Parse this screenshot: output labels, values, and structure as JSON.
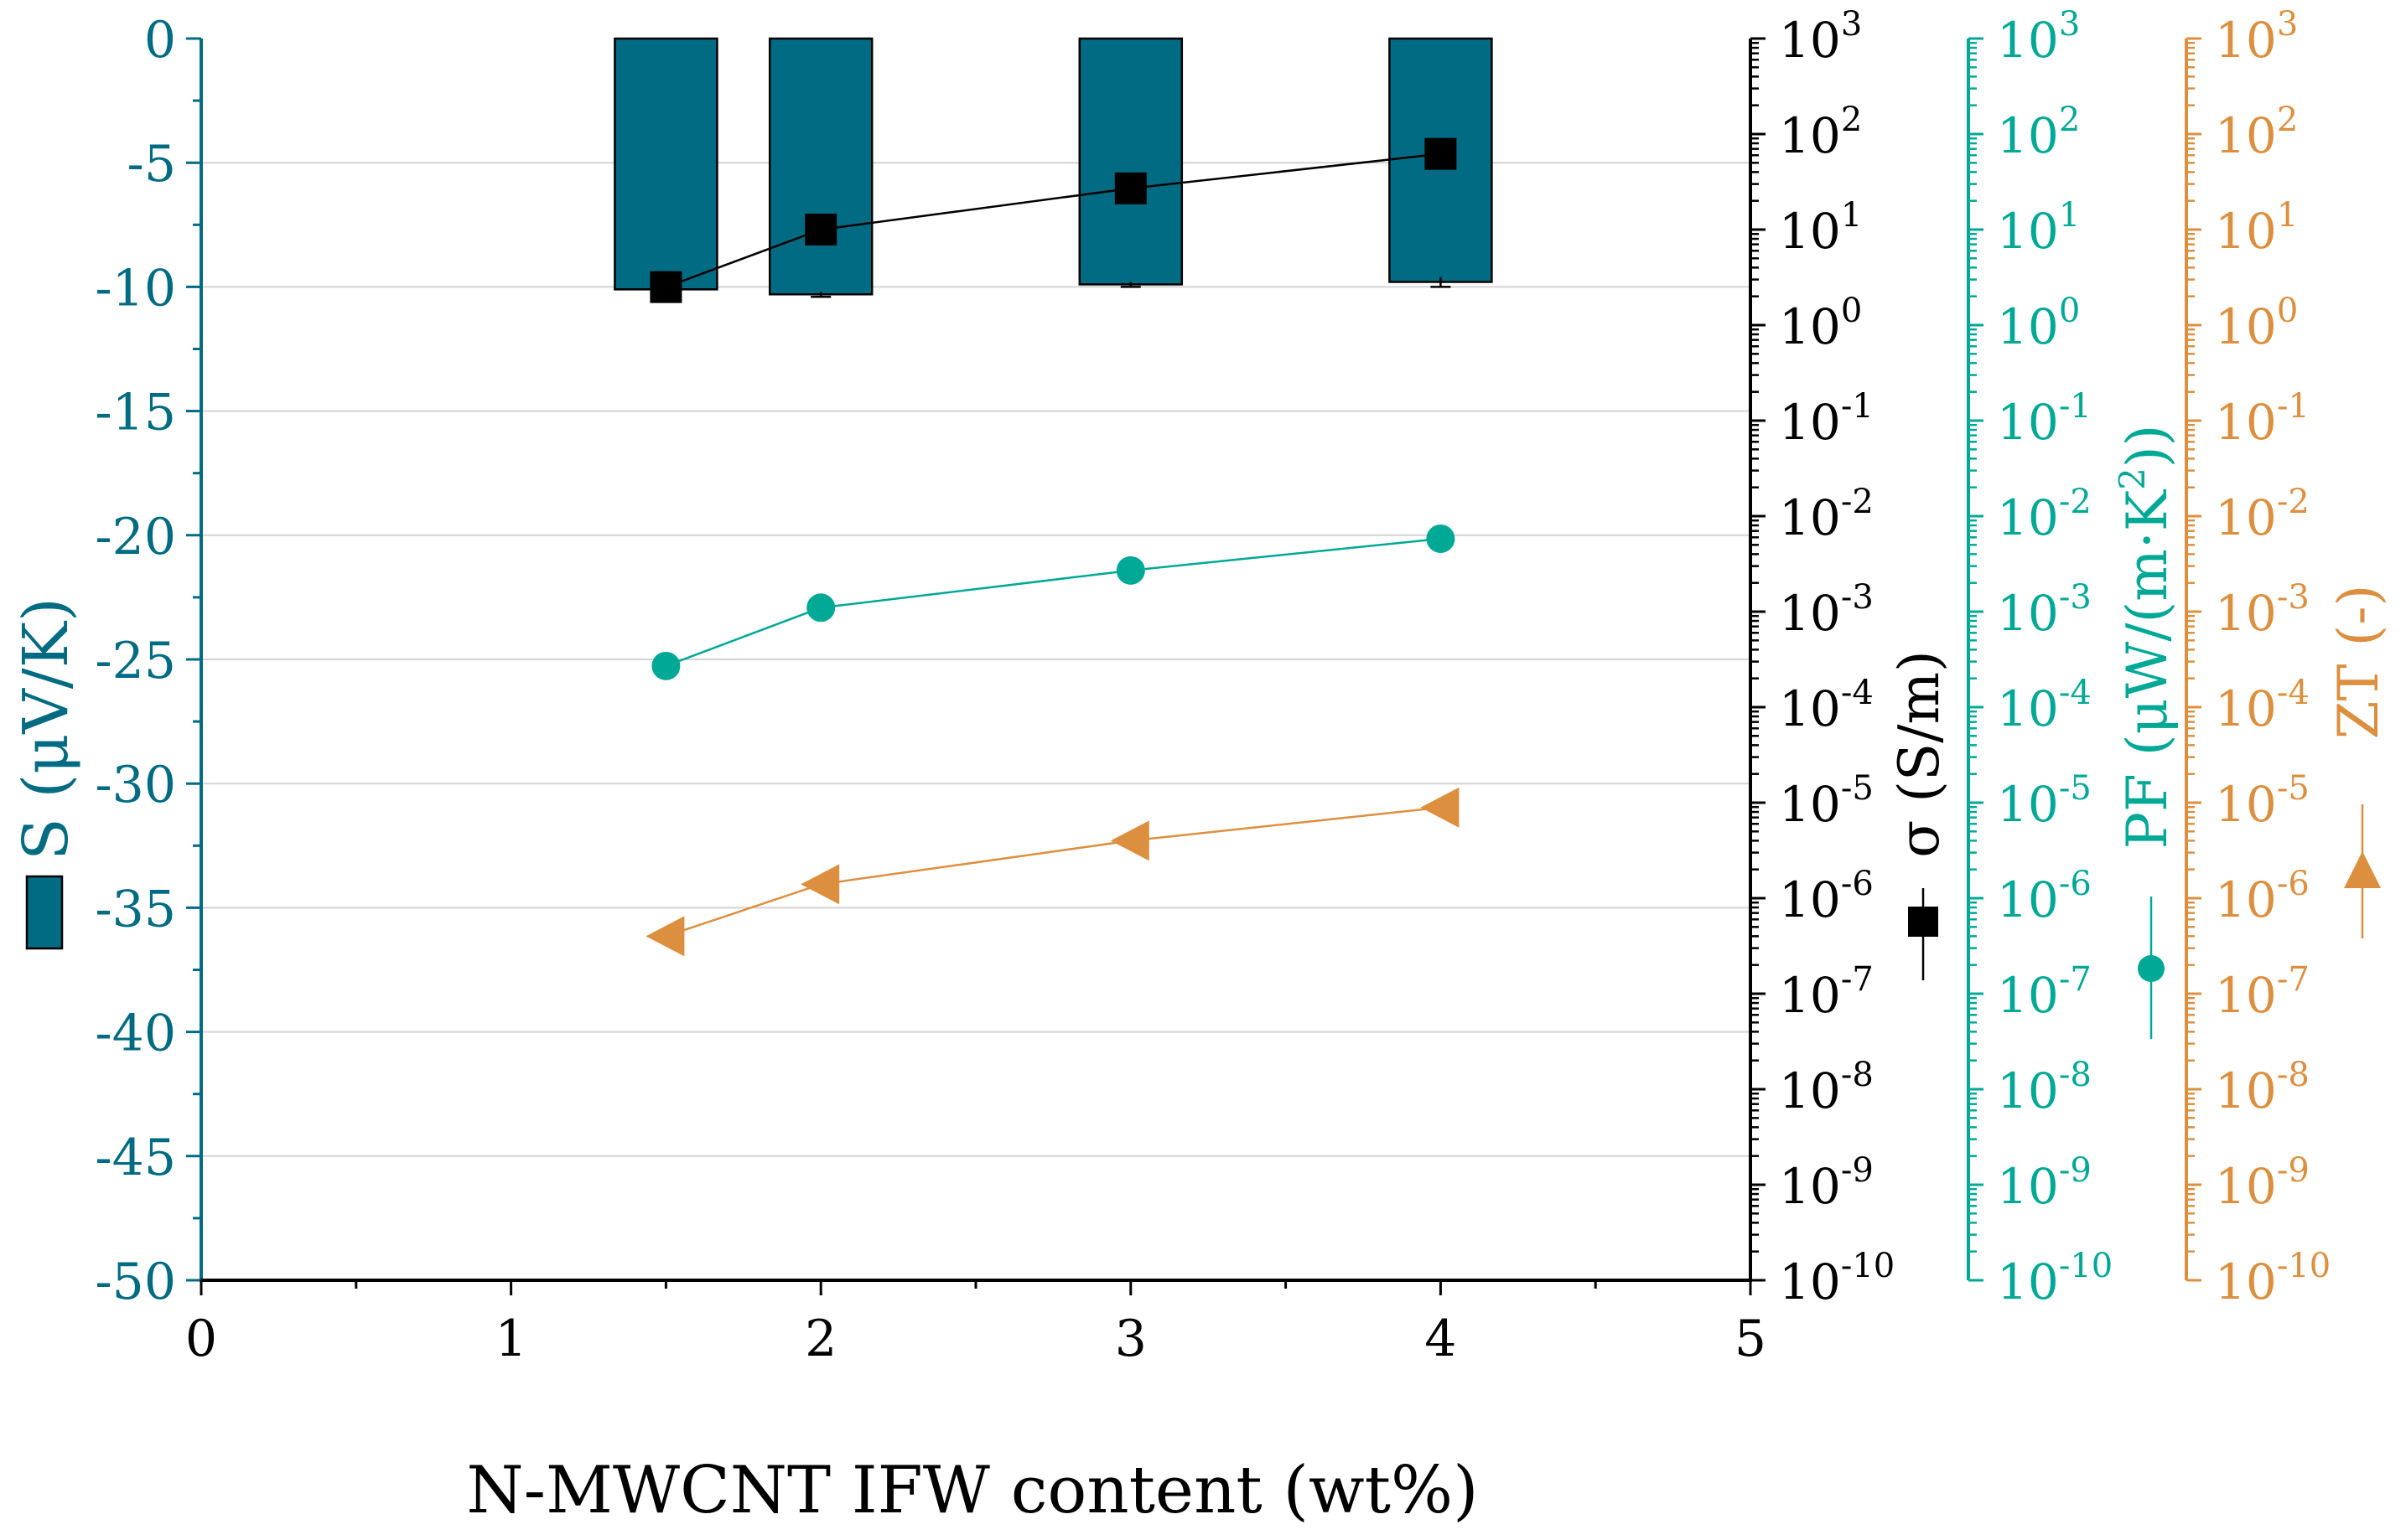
{
  "chart_data": {
    "type": "bar+line",
    "xlabel": "N-MWCNT IFW content (wt%)",
    "xlim": [
      0,
      5
    ],
    "xticks": [
      "0",
      "1",
      "2",
      "3",
      "4",
      "5"
    ],
    "colors": {
      "bar": "#006b82",
      "sigma": "#000000",
      "pf": "#00a896",
      "zt": "#dc8f3e",
      "grid": "#d3d3d3"
    },
    "bars": {
      "name": "S",
      "axis_label": "S (μV/K)",
      "ylim": [
        -50,
        0
      ],
      "ticks": [
        "0",
        "-5",
        "-10",
        "-15",
        "-20",
        "-25",
        "-30",
        "-35",
        "-40",
        "-45",
        "-50"
      ],
      "x": [
        1.5,
        2,
        3,
        4
      ],
      "values": [
        -10.1,
        -10.3,
        -9.9,
        -9.8
      ],
      "errors": [
        0.1,
        0.1,
        0.1,
        0.2
      ]
    },
    "log_axis": {
      "range_exponents": [
        -10,
        3
      ],
      "tick_base": [
        "10",
        "10",
        "10",
        "10",
        "10",
        "10",
        "10",
        "10",
        "10",
        "10",
        "10",
        "10",
        "10",
        "10"
      ],
      "tick_exponents": [
        "3",
        "2",
        "1",
        "0",
        "-1",
        "-2",
        "-3",
        "-4",
        "-5",
        "-6",
        "-7",
        "-8",
        "-9",
        "-10"
      ]
    },
    "series": [
      {
        "name": "sigma",
        "label": "σ (S/m)",
        "marker": "square",
        "x": [
          1.5,
          2,
          3,
          4
        ],
        "values": [
          2.5,
          10,
          27,
          62
        ]
      },
      {
        "name": "PF",
        "label": "PF (μW/(m·K",
        "label_sup": "2",
        "label_end": "))",
        "marker": "circle",
        "x": [
          1.5,
          2,
          3,
          4
        ],
        "values": [
          0.00027,
          0.0011,
          0.0027,
          0.0058
        ]
      },
      {
        "name": "ZT",
        "label": "ZT (-)",
        "marker": "triangle",
        "x": [
          1.5,
          2,
          3,
          4
        ],
        "values": [
          4e-07,
          1.4e-06,
          4e-06,
          8.9e-06
        ]
      }
    ]
  }
}
